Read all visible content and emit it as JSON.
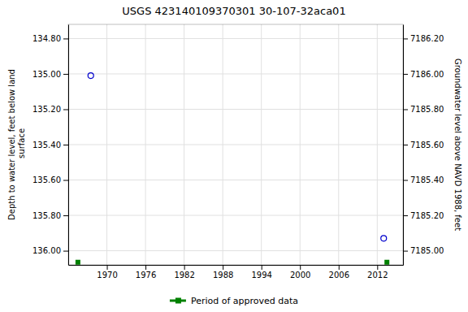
{
  "chart_data": {
    "type": "scatter",
    "title": "USGS 423140109370301 30-107-32aca01",
    "ylabel": "Depth to water level, feet below land\n surface",
    "y2label": "Groundwater level above NAVD 1988, feet",
    "xlim": [
      1964.0,
      2016.0
    ],
    "xticks": [
      1970,
      1976,
      1982,
      1988,
      1994,
      2000,
      2006,
      2012
    ],
    "ylim": [
      136.08,
      134.72
    ],
    "yticks": [
      {
        "value": 134.8,
        "label": "134.80"
      },
      {
        "value": 135.0,
        "label": "135.00"
      },
      {
        "value": 135.2,
        "label": "135.20"
      },
      {
        "value": 135.4,
        "label": "135.40"
      },
      {
        "value": 135.6,
        "label": "135.60"
      },
      {
        "value": 135.8,
        "label": "135.80"
      },
      {
        "value": 136.0,
        "label": "136.00"
      }
    ],
    "y2lim": [
      7184.92,
      7186.28
    ],
    "y2ticks": [
      {
        "value": 7185.0,
        "label": "7185.00"
      },
      {
        "value": 7185.2,
        "label": "7185.20"
      },
      {
        "value": 7185.4,
        "label": "7185.40"
      },
      {
        "value": 7185.6,
        "label": "7185.60"
      },
      {
        "value": 7185.8,
        "label": "7185.80"
      },
      {
        "value": 7186.0,
        "label": "7186.00"
      },
      {
        "value": 7186.2,
        "label": "7186.20"
      }
    ],
    "grid": true,
    "legend": "bottom",
    "series": [
      {
        "color": "#0000cc",
        "marker": "circle-open",
        "x": [
          1967.5,
          2013.0
        ],
        "values": [
          135.01,
          135.93
        ]
      },
      {
        "name": "Period of approved data",
        "color": "#008000",
        "marker": "square",
        "x": [
          1965.5,
          2013.5
        ],
        "values": [
          136.065,
          136.065
        ]
      }
    ]
  }
}
